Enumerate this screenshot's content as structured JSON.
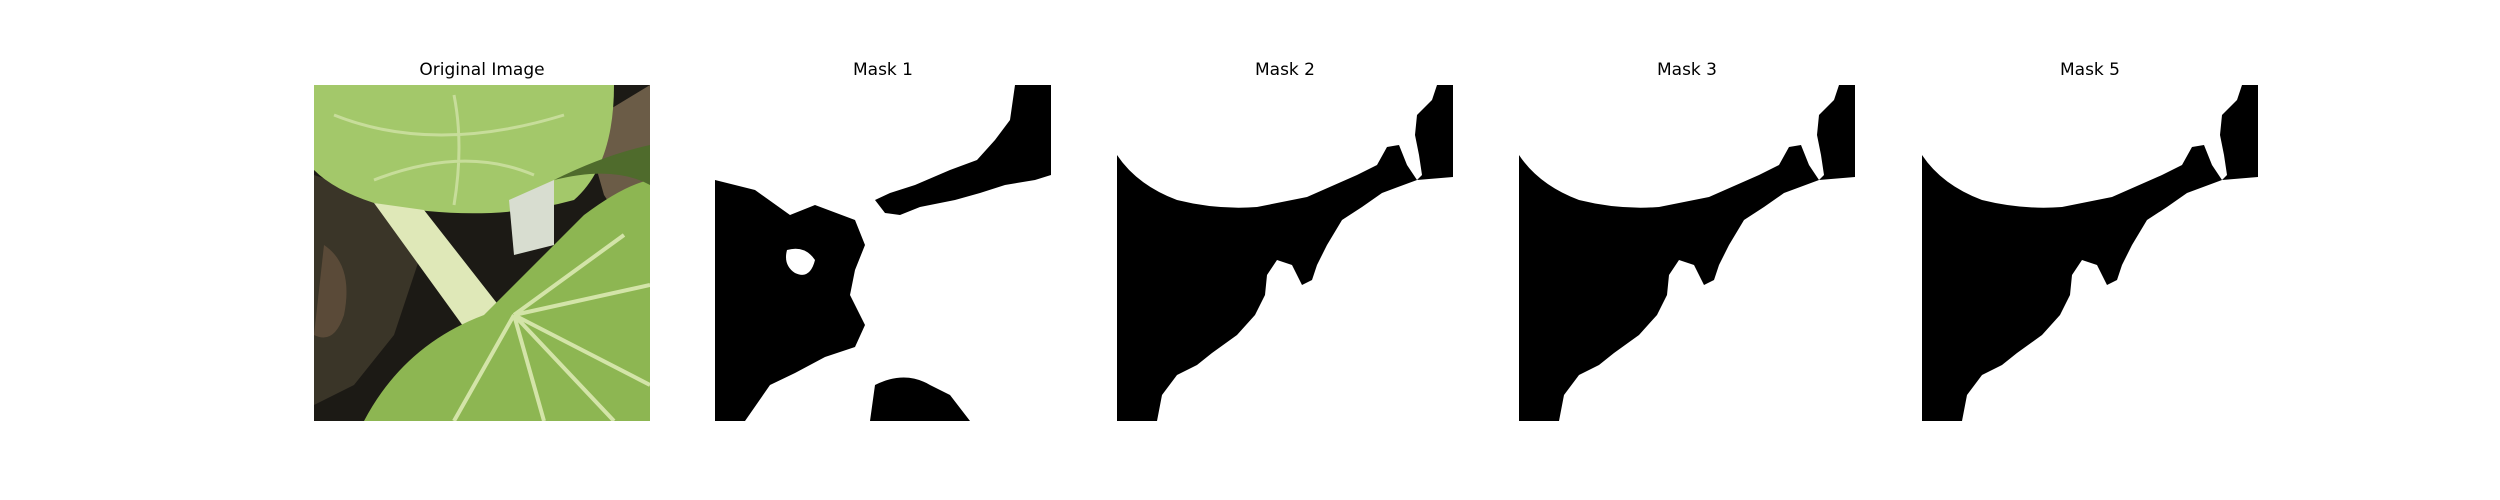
{
  "figure": {
    "panels": [
      {
        "title": "Original Image"
      },
      {
        "title": "Mask 1"
      },
      {
        "title": "Mask 2"
      },
      {
        "title": "Mask 3"
      },
      {
        "title": "Mask 5"
      }
    ]
  },
  "colors": {
    "background": "#ffffff",
    "mask_foreground": "#ffffff",
    "mask_background": "#000000",
    "leaf_light": "#a9cc74",
    "leaf_mid": "#8db652",
    "leaf_dark": "#6f9a3a",
    "stem": "#dfe8b8",
    "shadow": "#1c1a15",
    "soil": "#5a4a38"
  }
}
